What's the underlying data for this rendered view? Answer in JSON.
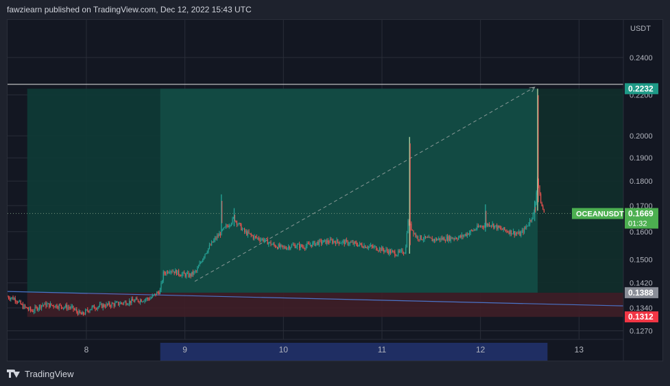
{
  "header": {
    "text": "fawziearn published on TradingView.com, Dec 12, 2022 15:43 UTC"
  },
  "footer": {
    "brand": "TradingView",
    "logo_icon": "tradingview-logo-icon"
  },
  "colors": {
    "background": "#131722",
    "grid": "#2a2e39",
    "up": "#26a69a",
    "down": "#ef5350",
    "profit_zone": "#0e3b36",
    "profit_zone_highlight": "#134d45",
    "loss_zone": "#3f1e27",
    "trendline": "#4a74c9",
    "target_badge": "#1e9a87",
    "entry_badge": "#8a8e98",
    "stop_badge": "#f23645",
    "symbol_badge": "#4caf50",
    "time_highlight": "#1f2e63"
  },
  "chart_data": {
    "type": "candlestick",
    "symbol": "OCEANUSDT",
    "title": "",
    "xlabel": "",
    "ylabel": "",
    "axis_unit": "USDT",
    "x_ticks": [
      8,
      9,
      10,
      11,
      12,
      13
    ],
    "xlim": [
      7.2,
      13.45
    ],
    "y_ticks": [
      0.127,
      0.134,
      0.142,
      0.15,
      0.16,
      0.17,
      0.18,
      0.19,
      0.2,
      0.22,
      0.24
    ],
    "y_tick_labels": [
      "0.1270",
      "0.1340",
      "0.1420",
      "0.1500",
      "0.1600",
      "0.1700",
      "0.1800",
      "0.1900",
      "0.2000",
      "0.2200",
      "0.2400"
    ],
    "ylim": [
      0.1245,
      0.262
    ],
    "y_scale": "log",
    "grid": true,
    "current_price": {
      "label": "0.1669",
      "value": 0.1669,
      "countdown": "01:32"
    },
    "position": {
      "type": "long",
      "entry": {
        "label": "0.1388",
        "value": 0.1388
      },
      "target": {
        "label": "0.2232",
        "value": 0.2232
      },
      "stop": {
        "label": "0.1312",
        "value": 0.1312
      },
      "start_day": 7.4,
      "end_day": 12.58,
      "highlight_start_day": 8.75
    },
    "horizontal_line": 0.2255,
    "trendline": {
      "from": [
        7.2,
        0.1392
      ],
      "to": [
        13.45,
        0.1346
      ]
    },
    "projection_line": {
      "from": [
        9.1,
        0.1425
      ],
      "to": [
        12.55,
        0.224
      ]
    },
    "time_highlight_range": [
      8.75,
      12.68
    ],
    "price_path": [
      [
        7.2,
        0.1375
      ],
      [
        7.28,
        0.1368
      ],
      [
        7.35,
        0.1345
      ],
      [
        7.45,
        0.133
      ],
      [
        7.55,
        0.135
      ],
      [
        7.7,
        0.1347
      ],
      [
        7.85,
        0.134
      ],
      [
        7.95,
        0.1318
      ],
      [
        8.05,
        0.134
      ],
      [
        8.15,
        0.1346
      ],
      [
        8.3,
        0.1352
      ],
      [
        8.45,
        0.136
      ],
      [
        8.55,
        0.1365
      ],
      [
        8.65,
        0.137
      ],
      [
        8.75,
        0.1395
      ],
      [
        8.78,
        0.145
      ],
      [
        8.85,
        0.1465
      ],
      [
        8.95,
        0.145
      ],
      [
        9.05,
        0.1445
      ],
      [
        9.12,
        0.146
      ],
      [
        9.2,
        0.152
      ],
      [
        9.3,
        0.157
      ],
      [
        9.4,
        0.161
      ],
      [
        9.5,
        0.165
      ],
      [
        9.6,
        0.16
      ],
      [
        9.7,
        0.158
      ],
      [
        9.8,
        0.157
      ],
      [
        9.9,
        0.155
      ],
      [
        10.0,
        0.154
      ],
      [
        10.1,
        0.155
      ],
      [
        10.2,
        0.1545
      ],
      [
        10.35,
        0.156
      ],
      [
        10.5,
        0.1565
      ],
      [
        10.65,
        0.156
      ],
      [
        10.8,
        0.155
      ],
      [
        10.95,
        0.154
      ],
      [
        11.05,
        0.153
      ],
      [
        11.15,
        0.152
      ],
      [
        11.24,
        0.153
      ],
      [
        11.26,
        0.164
      ],
      [
        11.35,
        0.158
      ],
      [
        11.5,
        0.157
      ],
      [
        11.65,
        0.1575
      ],
      [
        11.8,
        0.158
      ],
      [
        11.9,
        0.16
      ],
      [
        12.0,
        0.162
      ],
      [
        12.1,
        0.163
      ],
      [
        12.2,
        0.161
      ],
      [
        12.3,
        0.16
      ],
      [
        12.4,
        0.159
      ],
      [
        12.45,
        0.161
      ],
      [
        12.5,
        0.164
      ],
      [
        12.55,
        0.168
      ],
      [
        12.58,
        0.182
      ],
      [
        12.6,
        0.174
      ],
      [
        12.62,
        0.17
      ],
      [
        12.65,
        0.1669
      ]
    ],
    "wick_spikes": [
      {
        "x": 9.37,
        "high": 0.1745,
        "low": 0.16
      },
      {
        "x": 9.5,
        "high": 0.169,
        "low": 0.162
      },
      {
        "x": 11.28,
        "high": 0.1995,
        "low": 0.152
      },
      {
        "x": 12.05,
        "high": 0.1705,
        "low": 0.16
      },
      {
        "x": 12.55,
        "high": 0.172,
        "low": 0.164
      },
      {
        "x": 12.58,
        "high": 0.2232,
        "low": 0.168
      }
    ]
  }
}
